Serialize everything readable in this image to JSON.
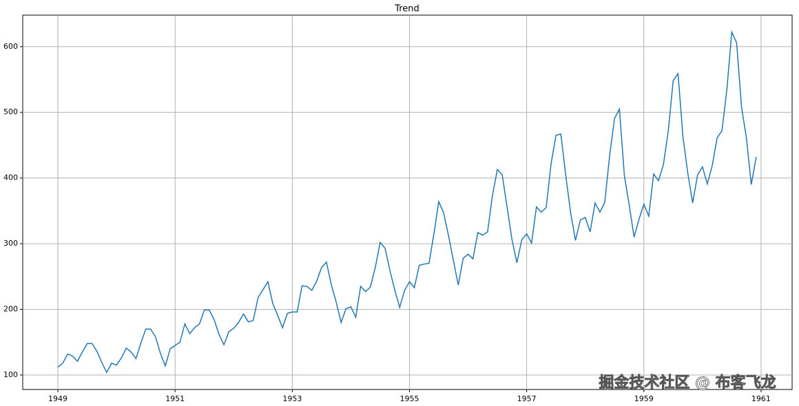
{
  "chart_data": {
    "type": "line",
    "title": "Trend",
    "x": [
      1949,
      1949.083,
      1949.167,
      1949.25,
      1949.333,
      1949.417,
      1949.5,
      1949.583,
      1949.667,
      1949.75,
      1949.833,
      1949.917,
      1950,
      1950.083,
      1950.167,
      1950.25,
      1950.333,
      1950.417,
      1950.5,
      1950.583,
      1950.667,
      1950.75,
      1950.833,
      1950.917,
      1951,
      1951.083,
      1951.167,
      1951.25,
      1951.333,
      1951.417,
      1951.5,
      1951.583,
      1951.667,
      1951.75,
      1951.833,
      1951.917,
      1952,
      1952.083,
      1952.167,
      1952.25,
      1952.333,
      1952.417,
      1952.5,
      1952.583,
      1952.667,
      1952.75,
      1952.833,
      1952.917,
      1953,
      1953.083,
      1953.167,
      1953.25,
      1953.333,
      1953.417,
      1953.5,
      1953.583,
      1953.667,
      1953.75,
      1953.833,
      1953.917,
      1954,
      1954.083,
      1954.167,
      1954.25,
      1954.333,
      1954.417,
      1954.5,
      1954.583,
      1954.667,
      1954.75,
      1954.833,
      1954.917,
      1955,
      1955.083,
      1955.167,
      1955.25,
      1955.333,
      1955.417,
      1955.5,
      1955.583,
      1955.667,
      1955.75,
      1955.833,
      1955.917,
      1956,
      1956.083,
      1956.167,
      1956.25,
      1956.333,
      1956.417,
      1956.5,
      1956.583,
      1956.667,
      1956.75,
      1956.833,
      1956.917,
      1957,
      1957.083,
      1957.167,
      1957.25,
      1957.333,
      1957.417,
      1957.5,
      1957.583,
      1957.667,
      1957.75,
      1957.833,
      1957.917,
      1958,
      1958.083,
      1958.167,
      1958.25,
      1958.333,
      1958.417,
      1958.5,
      1958.583,
      1958.667,
      1958.75,
      1958.833,
      1958.917,
      1959,
      1959.083,
      1959.167,
      1959.25,
      1959.333,
      1959.417,
      1959.5,
      1959.583,
      1959.667,
      1959.75,
      1959.833,
      1959.917,
      1960,
      1960.083,
      1960.167,
      1960.25,
      1960.333,
      1960.417,
      1960.5,
      1960.583,
      1960.667,
      1960.75,
      1960.833,
      1960.917
    ],
    "series": [
      {
        "color": "#1f77b4",
        "values": [
          112,
          118,
          132,
          129,
          121,
          135,
          148,
          148,
          136,
          119,
          104,
          118,
          115,
          126,
          141,
          135,
          125,
          149,
          170,
          170,
          158,
          133,
          114,
          140,
          145,
          150,
          178,
          163,
          172,
          178,
          199,
          199,
          184,
          162,
          146,
          166,
          171,
          180,
          193,
          181,
          183,
          218,
          230,
          242,
          209,
          191,
          172,
          194,
          196,
          196,
          236,
          235,
          229,
          243,
          264,
          272,
          237,
          211,
          180,
          201,
          204,
          188,
          235,
          227,
          234,
          264,
          302,
          293,
          259,
          229,
          203,
          229,
          242,
          233,
          267,
          269,
          270,
          315,
          364,
          347,
          312,
          274,
          237,
          278,
          284,
          277,
          317,
          313,
          318,
          374,
          413,
          405,
          355,
          306,
          271,
          306,
          315,
          301,
          356,
          348,
          355,
          422,
          465,
          467,
          404,
          347,
          305,
          336,
          340,
          318,
          362,
          348,
          363,
          435,
          491,
          505,
          404,
          359,
          310,
          337,
          360,
          342,
          406,
          396,
          420,
          472,
          548,
          559,
          463,
          407,
          362,
          405,
          417,
          391,
          419,
          461,
          472,
          535,
          622,
          606,
          508,
          461,
          390,
          432
        ]
      }
    ],
    "xlim": [
      1948.4,
      1961.53
    ],
    "xticks": [
      1949,
      1951,
      1953,
      1955,
      1957,
      1959,
      1961
    ],
    "ylim": [
      78,
      648
    ],
    "yticks": [
      100,
      200,
      300,
      400,
      500,
      600
    ],
    "grid": true,
    "watermark": "掘金技术社区 @ 布客飞龙"
  }
}
